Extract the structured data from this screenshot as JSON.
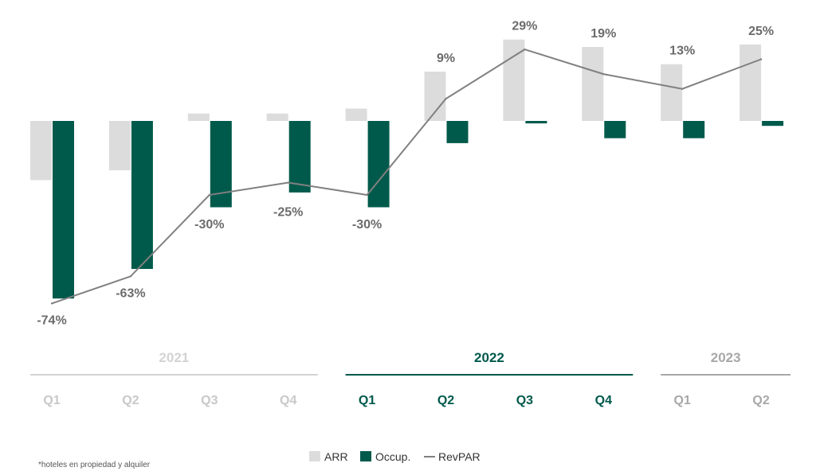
{
  "chart_data": {
    "type": "bar",
    "categories": [
      "Q1",
      "Q2",
      "Q3",
      "Q4",
      "Q1",
      "Q2",
      "Q3",
      "Q4",
      "Q1",
      "Q2"
    ],
    "years": [
      {
        "label": "2021",
        "color": "#d3d3d3"
      },
      {
        "label": "2022",
        "color": "#00594c"
      },
      {
        "label": "2023",
        "color": "#a8a8a8"
      }
    ],
    "quarter_year_index": [
      0,
      0,
      0,
      0,
      1,
      1,
      1,
      1,
      2,
      2
    ],
    "series": [
      {
        "name": "ARR",
        "type": "bar",
        "color": "#dcdcdc",
        "values": [
          -24,
          -20,
          3,
          3,
          5,
          20,
          33,
          30,
          23,
          31
        ]
      },
      {
        "name": "Occup.",
        "type": "bar",
        "color": "#005a4b",
        "values": [
          -72,
          -60,
          -35,
          -29,
          -35,
          -9,
          -1,
          -7,
          -7,
          -2
        ]
      },
      {
        "name": "RevPAR",
        "type": "line",
        "color": "#808080",
        "values": [
          -74,
          -63,
          -30,
          -25,
          -30,
          9,
          29,
          19,
          13,
          25
        ]
      }
    ],
    "data_labels": [
      "-74%",
      "-63%",
      "-30%",
      "-25%",
      "-30%",
      "9%",
      "29%",
      "19%",
      "13%",
      "25%"
    ],
    "ylim": [
      -80,
      33
    ],
    "grid": false,
    "legend_position": "bottom-center"
  },
  "footnote": "*hoteles en propiedad y alquiler"
}
